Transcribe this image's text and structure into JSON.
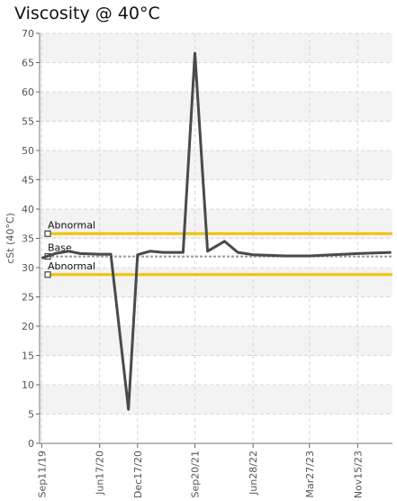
{
  "chart_data": {
    "type": "line",
    "title": "Viscosity @ 40°C",
    "ylabel": "cSt (40°C)",
    "xlabel": "",
    "ylim": [
      0,
      70
    ],
    "yticks": [
      0,
      5,
      10,
      15,
      20,
      25,
      30,
      35,
      40,
      45,
      50,
      55,
      60,
      65,
      70
    ],
    "grid": true,
    "x_ticks": [
      "Sep11/19",
      "Jun17/20",
      "Dec17/20",
      "Sep20/21",
      "Jun28/22",
      "Mar27/23",
      "Nov15/23"
    ],
    "x_range": [
      "2019-09-01",
      "2024-05-01"
    ],
    "series": [
      {
        "color": "#4a4a4a",
        "points": [
          [
            "2019-09-11",
            31.6
          ],
          [
            "2019-11-15",
            32.4
          ],
          [
            "2020-01-20",
            32.8
          ],
          [
            "2020-03-15",
            32.4
          ],
          [
            "2020-06-17",
            32.3
          ],
          [
            "2020-08-10",
            32.3
          ],
          [
            "2020-11-03",
            5.8
          ],
          [
            "2020-12-17",
            32.2
          ],
          [
            "2021-02-15",
            32.8
          ],
          [
            "2021-04-20",
            32.6
          ],
          [
            "2021-06-01",
            32.6
          ],
          [
            "2021-07-25",
            32.6
          ],
          [
            "2021-09-20",
            66.6
          ],
          [
            "2021-11-20",
            32.8
          ],
          [
            "2022-02-10",
            34.5
          ],
          [
            "2022-04-15",
            32.6
          ],
          [
            "2022-06-28",
            32.2
          ],
          [
            "2022-12-01",
            32.0
          ],
          [
            "2023-03-27",
            32.0
          ],
          [
            "2023-11-15",
            32.4
          ],
          [
            "2024-04-25",
            32.6
          ]
        ]
      }
    ],
    "reference_lines": [
      {
        "label": "Abnormal",
        "value": 35.8,
        "color": "#f2c200",
        "style": "solid"
      },
      {
        "label": "Base",
        "value": 31.9,
        "color": "#999999",
        "style": "dashed"
      },
      {
        "label": "Abnormal",
        "value": 28.8,
        "color": "#f2c200",
        "style": "solid"
      }
    ]
  }
}
